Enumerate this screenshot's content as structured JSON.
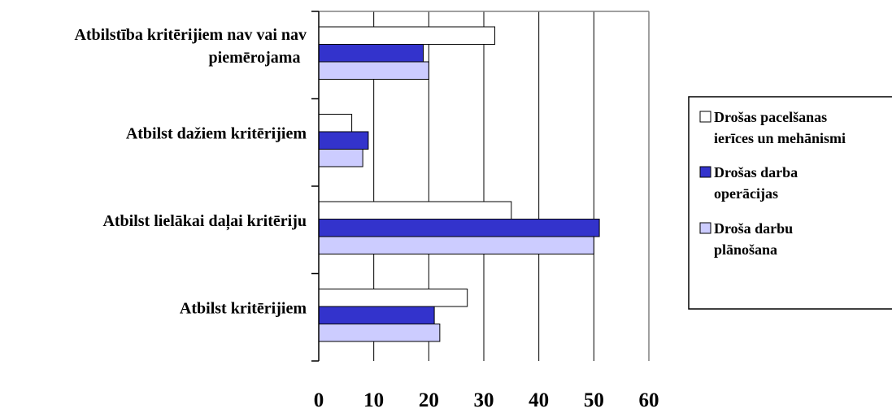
{
  "chart_data": {
    "type": "bar",
    "orientation": "horizontal",
    "categories": [
      [
        "Atbilstība kritērijiem nav vai nav",
        "piemērojama"
      ],
      [
        "Atbilst dažiem kritērijiem"
      ],
      [
        "Atbilst lielākai daļai kritēriju"
      ],
      [
        "Atbilst kritērijiem"
      ]
    ],
    "series": [
      {
        "name": [
          "Drošas pacelšanas",
          "ierīces un mehānismi"
        ],
        "color": "#ffffff",
        "values": [
          32,
          6,
          35,
          27
        ]
      },
      {
        "name": [
          "Drošas darba",
          "operācijas"
        ],
        "color": "#3333cc",
        "values": [
          19,
          9,
          51,
          21
        ]
      },
      {
        "name": [
          "Droša darbu",
          "plānošana"
        ],
        "color": "#ccccff",
        "values": [
          20,
          8,
          50,
          22
        ]
      }
    ],
    "x_ticks": [
      "0",
      "10",
      "20",
      "30",
      "40",
      "50",
      "60"
    ],
    "xlim": [
      0,
      60
    ],
    "grid": "vertical",
    "legend_position": "right"
  }
}
